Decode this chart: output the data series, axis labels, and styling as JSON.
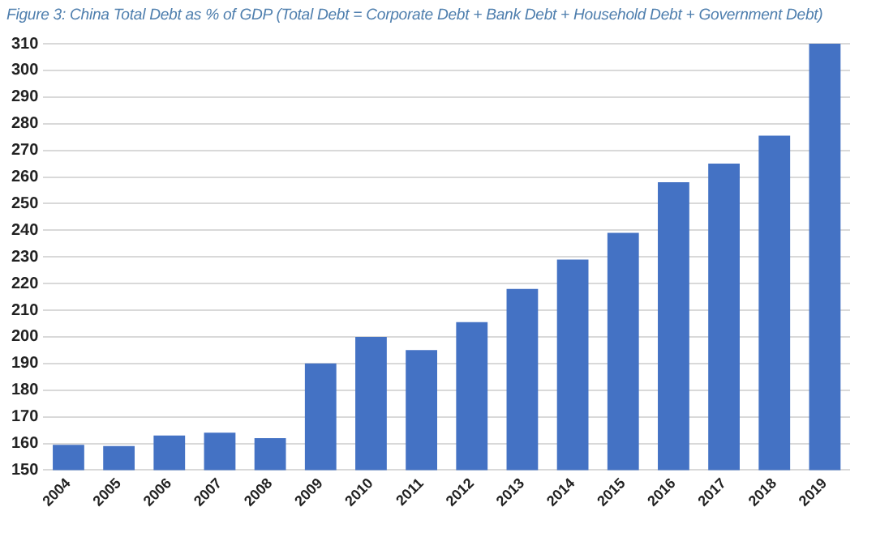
{
  "chart_data": {
    "type": "bar",
    "title": "Figure 3: China Total Debt as % of GDP (Total Debt = Corporate Debt + Bank Debt + Household Debt + Government Debt)",
    "categories": [
      "2004",
      "2005",
      "2006",
      "2007",
      "2008",
      "2009",
      "2010",
      "2011",
      "2012",
      "2013",
      "2014",
      "2015",
      "2016",
      "2017",
      "2018",
      "2019"
    ],
    "values": [
      159.5,
      159,
      163,
      164,
      162,
      190,
      200,
      195,
      205.5,
      218,
      229,
      239,
      258,
      265,
      275.5,
      310
    ],
    "color": "#4472c4",
    "ylim": [
      150,
      310
    ],
    "yticks": [
      150,
      160,
      170,
      180,
      190,
      200,
      210,
      220,
      230,
      240,
      250,
      260,
      270,
      280,
      290,
      300,
      310
    ],
    "grid": "y",
    "legend": false
  }
}
